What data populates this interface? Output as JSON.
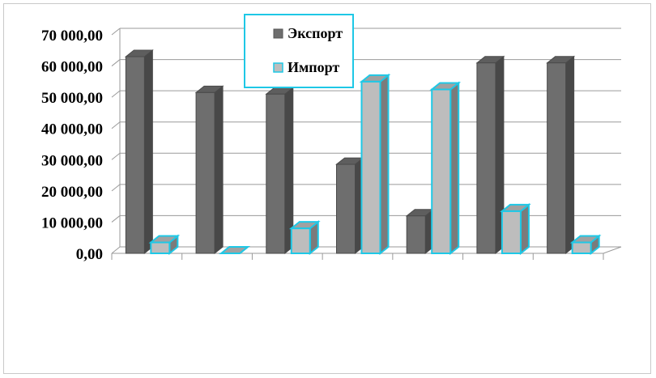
{
  "chart_data": {
    "type": "bar",
    "title": "",
    "xlabel": "",
    "ylabel": "",
    "ylim": [
      0,
      70000
    ],
    "yticks": [
      0,
      10000,
      20000,
      30000,
      40000,
      50000,
      60000,
      70000
    ],
    "ytick_labels": [
      "0,00",
      "10 000,00",
      "20 000,00",
      "30 000,00",
      "40 000,00",
      "50 000,00",
      "60 000,00",
      "70 000,00"
    ],
    "categories": [
      "",
      "",
      "",
      "",
      "",
      "",
      ""
    ],
    "grid": true,
    "legend_position": "top-center",
    "series": [
      {
        "name": "Экспорт",
        "color": "#6e6e6e",
        "values": [
          63000,
          51500,
          51000,
          28500,
          12000,
          61000,
          61000
        ]
      },
      {
        "name": "Импорт",
        "color": "#bdbdbd",
        "edge": "#1ec8e6",
        "values": [
          3500,
          0,
          8000,
          55000,
          52500,
          13500,
          3500
        ]
      }
    ]
  }
}
